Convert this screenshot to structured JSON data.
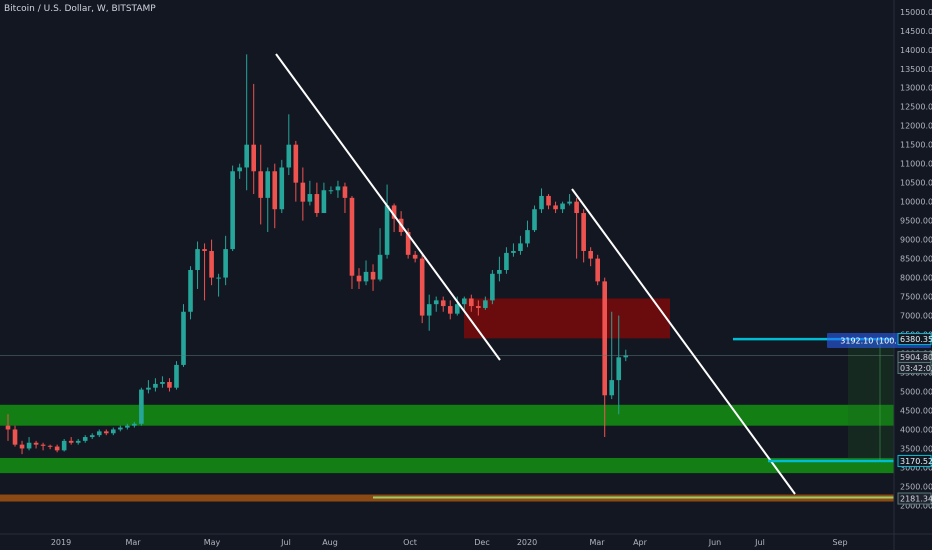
{
  "header": {
    "symbol_title": "Bitcoin / U.S. Dollar, W, BITSTAMP"
  },
  "colors": {
    "background": "#131722",
    "up": "#26a69a",
    "down": "#ef5350",
    "support_zone": "#138a13",
    "resistance_zone": "#7a0a0a",
    "bottom_band": "#8b4a14",
    "trendline": "#ffffff",
    "target_line": "#00bcd4",
    "axis_text": "#b2b5be"
  },
  "chart_data": {
    "type": "candlestick",
    "title": "Bitcoin / U.S. Dollar, W, BITSTAMP",
    "x_tick_labels": [
      "2019",
      "Mar",
      "May",
      "Jul",
      "Aug",
      "Oct",
      "Dec",
      "2020",
      "Mar",
      "Apr",
      "Jun",
      "Jul",
      "Sep"
    ],
    "y_tick_labels": [
      "15000.00",
      "14500.00",
      "14000.00",
      "13500.00",
      "13000.00",
      "12500.00",
      "12000.00",
      "11500.00",
      "11000.00",
      "10500.00",
      "10000.00",
      "9500.00",
      "9000.00",
      "8500.00",
      "8000.00",
      "7500.00",
      "7000.00",
      "6500.00",
      "6000.00",
      "5500.00",
      "5000.00",
      "4500.00",
      "4000.00",
      "3500.00",
      "3000.00",
      "2500.00",
      "2000.00"
    ],
    "ylim": [
      1800,
      15100
    ],
    "grid": false,
    "candles": [
      [
        4100,
        4000,
        4400,
        3700
      ],
      [
        4000,
        3600,
        4100,
        3550
      ],
      [
        3600,
        3500,
        3700,
        3350
      ],
      [
        3500,
        3650,
        3800,
        3450
      ],
      [
        3650,
        3600,
        3700,
        3500
      ],
      [
        3600,
        3570,
        3650,
        3450
      ],
      [
        3570,
        3550,
        3600,
        3480
      ],
      [
        3550,
        3450,
        3600,
        3400
      ],
      [
        3450,
        3700,
        3750,
        3420
      ],
      [
        3700,
        3650,
        3800,
        3600
      ],
      [
        3650,
        3700,
        3750,
        3600
      ],
      [
        3700,
        3800,
        3850,
        3650
      ],
      [
        3800,
        3850,
        3900,
        3750
      ],
      [
        3850,
        3950,
        4000,
        3800
      ],
      [
        3950,
        3900,
        4000,
        3850
      ],
      [
        3900,
        4000,
        4050,
        3850
      ],
      [
        4000,
        4050,
        4100,
        3950
      ],
      [
        4050,
        4100,
        4150,
        4000
      ],
      [
        4100,
        4150,
        4200,
        4050
      ],
      [
        4150,
        5050,
        5100,
        4100
      ],
      [
        5050,
        5100,
        5300,
        4950
      ],
      [
        5100,
        5200,
        5350,
        5000
      ],
      [
        5200,
        5250,
        5400,
        5100
      ],
      [
        5250,
        5100,
        5350,
        5000
      ],
      [
        5100,
        5700,
        5800,
        5050
      ],
      [
        5700,
        7100,
        7300,
        5650
      ],
      [
        7100,
        8200,
        8300,
        6900
      ],
      [
        8200,
        8750,
        8950,
        7700
      ],
      [
        8750,
        8700,
        8900,
        7400
      ],
      [
        8700,
        8000,
        9000,
        7800
      ],
      [
        8000,
        8000,
        8100,
        7500
      ],
      [
        8000,
        8750,
        9100,
        7800
      ],
      [
        8750,
        10800,
        10950,
        8700
      ],
      [
        10800,
        10900,
        11000,
        10600
      ],
      [
        10900,
        11500,
        13880,
        10300
      ],
      [
        11500,
        10800,
        13100,
        10200
      ],
      [
        10800,
        10100,
        11500,
        9400
      ],
      [
        10100,
        10800,
        10900,
        9200
      ],
      [
        10800,
        9800,
        11000,
        9300
      ],
      [
        9800,
        10900,
        11100,
        9700
      ],
      [
        10900,
        11500,
        12300,
        10700
      ],
      [
        11500,
        10500,
        11600,
        10000
      ],
      [
        10500,
        10000,
        10900,
        9500
      ],
      [
        10000,
        10200,
        10550,
        9900
      ],
      [
        10200,
        9700,
        10500,
        9600
      ],
      [
        9700,
        10300,
        10500,
        10000
      ],
      [
        10300,
        10300,
        10400,
        10200
      ],
      [
        10300,
        10400,
        10550,
        10100
      ],
      [
        10400,
        10100,
        10500,
        9700
      ],
      [
        10100,
        8050,
        10150,
        7700
      ],
      [
        8050,
        7900,
        8250,
        7700
      ],
      [
        7900,
        8150,
        8450,
        7800
      ],
      [
        8150,
        7950,
        8350,
        7650
      ],
      [
        7950,
        8600,
        9300,
        7900
      ],
      [
        8600,
        9900,
        10450,
        8500
      ],
      [
        9900,
        9550,
        9950,
        9200
      ],
      [
        9550,
        9200,
        9750,
        9100
      ],
      [
        9200,
        8600,
        9300,
        8500
      ],
      [
        8600,
        8500,
        8700,
        8400
      ],
      [
        8500,
        7000,
        8600,
        6800
      ],
      [
        7000,
        7300,
        7550,
        6600
      ],
      [
        7300,
        7400,
        7500,
        7100
      ],
      [
        7400,
        7250,
        7500,
        7100
      ],
      [
        7250,
        7050,
        7400,
        6900
      ],
      [
        7050,
        7300,
        7500,
        7000
      ],
      [
        7300,
        7450,
        7500,
        7150
      ],
      [
        7450,
        7250,
        7550,
        7100
      ],
      [
        7250,
        7200,
        7400,
        7000
      ],
      [
        7200,
        7400,
        7500,
        7150
      ],
      [
        7400,
        8100,
        8200,
        7300
      ],
      [
        8100,
        8200,
        8550,
        7900
      ],
      [
        8200,
        8650,
        8800,
        8100
      ],
      [
        8650,
        8700,
        8900,
        8550
      ],
      [
        8700,
        8900,
        9100,
        8600
      ],
      [
        8900,
        9250,
        9500,
        8800
      ],
      [
        9250,
        9800,
        9900,
        9200
      ],
      [
        9800,
        10150,
        10350,
        9700
      ],
      [
        10150,
        9900,
        10200,
        9800
      ],
      [
        9900,
        9800,
        10000,
        9700
      ],
      [
        9800,
        9950,
        10000,
        9700
      ],
      [
        9950,
        10000,
        10200,
        9900
      ],
      [
        10000,
        9700,
        10100,
        8500
      ],
      [
        9700,
        8700,
        9800,
        8400
      ],
      [
        8700,
        8500,
        8800,
        8300
      ],
      [
        8500,
        7900,
        8600,
        7800
      ],
      [
        7900,
        4900,
        8000,
        3800
      ],
      [
        4900,
        5300,
        7100,
        4800
      ],
      [
        5300,
        5900,
        7000,
        4400
      ],
      [
        5900,
        5950,
        6100,
        5800
      ]
    ],
    "zones": [
      {
        "name": "upper-support-zone",
        "top": 4650,
        "bottom": 4100
      },
      {
        "name": "lower-support-zone",
        "top": 3250,
        "bottom": 2850
      },
      {
        "name": "resistance-zone",
        "top": 7450,
        "bottom": 6400
      }
    ],
    "trendlines": [
      {
        "name": "trendline-2019",
        "from": [
          "Jul 2019",
          13880
        ],
        "to": [
          "Dec 2019",
          6400
        ]
      },
      {
        "name": "trendline-2020",
        "from": [
          "Feb 2020",
          10550
        ],
        "to": [
          "Jul 2020",
          2900
        ]
      }
    ],
    "target_lines": [
      {
        "name": "target-line-upper",
        "price": 6380.35
      },
      {
        "name": "target-line-lower",
        "price": 3170.52
      }
    ],
    "measure_label": "3192.10 (100.12%)",
    "price_tags": [
      {
        "name": "target-upper-price-tag",
        "text": "6380.35",
        "price": 6380.35,
        "style": "outline"
      },
      {
        "name": "current-price-tag",
        "text": "5904.80",
        "price": 5904.8,
        "style": "dark"
      },
      {
        "name": "countdown-tag",
        "text": "03:42:03",
        "price": 5620,
        "style": "dark"
      },
      {
        "name": "target-lower-price-tag",
        "text": "3170.52",
        "price": 3170.52,
        "style": "outline"
      },
      {
        "name": "bottom-band-price-tag",
        "text": "2181.34",
        "price": 2181.34,
        "style": "dark"
      }
    ]
  }
}
